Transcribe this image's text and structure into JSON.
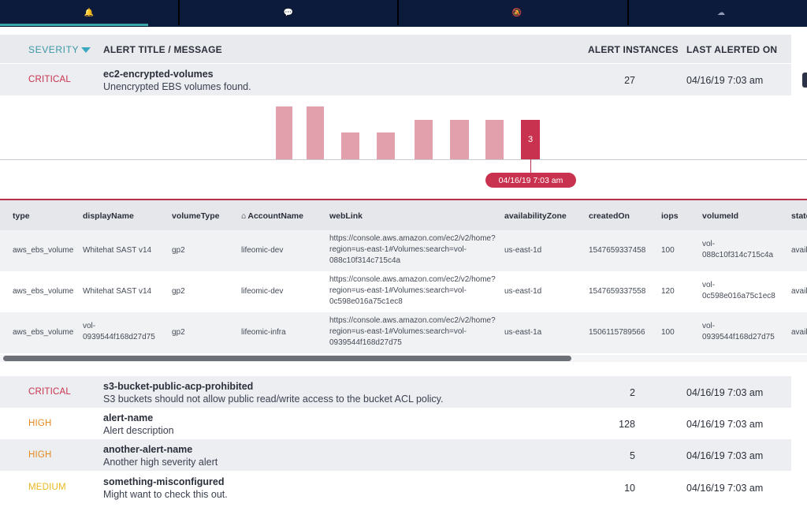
{
  "tabs": [
    {
      "icon": "bell-icon",
      "glyph": "🔔"
    },
    {
      "icon": "chat-icon",
      "glyph": "💬"
    },
    {
      "icon": "muted-icon",
      "glyph": "🔕"
    },
    {
      "icon": "cloud-icon",
      "glyph": "☁"
    }
  ],
  "header": {
    "severity": "SEVERITY",
    "title": "ALERT TITLE / MESSAGE",
    "instances": "ALERT INSTANCES",
    "last_alerted": "LAST ALERTED ON"
  },
  "expanded_alert": {
    "severity": "CRITICAL",
    "title": "ec2-encrypted-volumes",
    "message": "Unencrypted EBS volumes found.",
    "instances": "27",
    "last_alerted": "04/16/19 7:03 am"
  },
  "chart_data": {
    "type": "bar",
    "values": [
      4,
      4,
      2,
      2,
      3,
      3,
      3,
      3
    ],
    "highlighted_index": 7,
    "highlighted_label": "3",
    "selected_date": "04/16/19 7:03 am"
  },
  "detail_table": {
    "columns": [
      "type",
      "displayName",
      "volumeType",
      "AccountName",
      "webLink",
      "availabilityZone",
      "createdOn",
      "iops",
      "volumeId",
      "state"
    ],
    "rows": [
      {
        "type": "aws_ebs_volume",
        "displayName": "Whitehat SAST v14",
        "volumeType": "gp2",
        "AccountName": "lifeomic-dev",
        "webLink": [
          "https://console.aws.amazon.com/ec2/v2/home?",
          "region=us-east-1#Volumes:search=vol-",
          "088c10f314c715c4a"
        ],
        "availabilityZone": "us-east-1d",
        "createdOn": "1547659337458",
        "iops": "100",
        "volumeId": [
          "vol-",
          "088c10f314c715c4a"
        ],
        "state": "avail"
      },
      {
        "type": "aws_ebs_volume",
        "displayName": "Whitehat SAST v14",
        "volumeType": "gp2",
        "AccountName": "lifeomic-dev",
        "webLink": [
          "https://console.aws.amazon.com/ec2/v2/home?",
          "region=us-east-1#Volumes:search=vol-",
          "0c598e016a75c1ec8"
        ],
        "availabilityZone": "us-east-1d",
        "createdOn": "1547659337558",
        "iops": "120",
        "volumeId": [
          "vol-",
          "0c598e016a75c1ec8"
        ],
        "state": "avail"
      },
      {
        "type": "aws_ebs_volume",
        "displayName": [
          "vol-",
          "0939544f168d27d75"
        ],
        "volumeType": "gp2",
        "AccountName": "lifeomic-infra",
        "webLink": [
          "https://console.aws.amazon.com/ec2/v2/home?",
          "region=us-east-1#Volumes:search=vol-",
          "0939544f168d27d75"
        ],
        "availabilityZone": "us-east-1a",
        "createdOn": "1506115789566",
        "iops": "100",
        "volumeId": [
          "vol-",
          "0939544f168d27d75"
        ],
        "state": "avail"
      }
    ]
  },
  "alerts": [
    {
      "severity": "CRITICAL",
      "level": "critical",
      "title": "s3-bucket-public-acp-prohibited",
      "message": "S3 buckets should not allow public read/write access to the bucket ACL policy.",
      "instances": "2",
      "last_alerted": "04/16/19 7:03 am"
    },
    {
      "severity": "HIGH",
      "level": "high",
      "title": "alert-name",
      "message": "Alert description",
      "instances": "128",
      "last_alerted": "04/16/19 7:03 am"
    },
    {
      "severity": "HIGH",
      "level": "high",
      "title": "another-alert-name",
      "message": "Another high severity alert",
      "instances": "5",
      "last_alerted": "04/16/19 7:03 am"
    },
    {
      "severity": "MEDIUM",
      "level": "medium",
      "title": "something-misconfigured",
      "message": "Might want to check this out.",
      "instances": "10",
      "last_alerted": "04/16/19 7:03 am"
    }
  ],
  "colors": {
    "nav": "#0c1a3c",
    "accent": "#3aa6a8",
    "critical": "#c8324e",
    "high": "#e08a1f",
    "medium": "#e8b820",
    "bar": "#e2a0ac"
  }
}
